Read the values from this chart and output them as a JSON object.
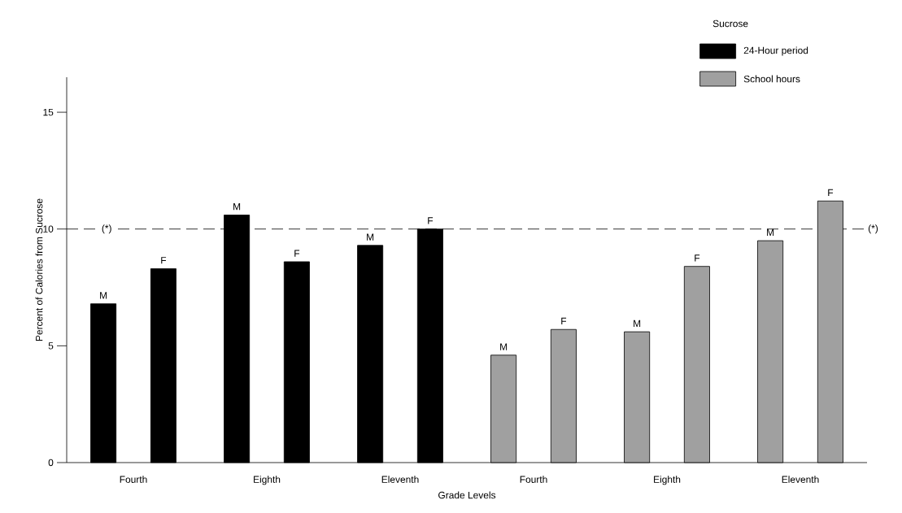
{
  "chart_data": {
    "type": "bar",
    "xlabel": "Grade Levels",
    "ylabel": "Percent of Calories from Sucrose",
    "legend_title": "Sucrose",
    "categories": [
      "Fourth",
      "Eighth",
      "Eleventh",
      "Fourth",
      "Eighth",
      "Eleventh"
    ],
    "series": [
      {
        "name": "M",
        "colors": [
          "#000000",
          "#000000",
          "#000000",
          "#a0a0a0",
          "#a0a0a0",
          "#a0a0a0"
        ],
        "values": [
          6.8,
          10.6,
          9.3,
          4.6,
          5.6,
          9.5
        ]
      },
      {
        "name": "F",
        "colors": [
          "#000000",
          "#000000",
          "#000000",
          "#a0a0a0",
          "#a0a0a0",
          "#a0a0a0"
        ],
        "values": [
          8.3,
          8.6,
          10.0,
          5.7,
          8.4,
          11.2
        ]
      }
    ],
    "annotations": [
      "24-Hour period",
      "School hours"
    ],
    "ref_lines": [
      {
        "axis": "y",
        "value": 10,
        "label": "(*)",
        "line_style": "dashed"
      }
    ],
    "ylim": [
      0,
      16.5
    ],
    "yticks": [
      0,
      5,
      10,
      15
    ],
    "grid": false
  }
}
